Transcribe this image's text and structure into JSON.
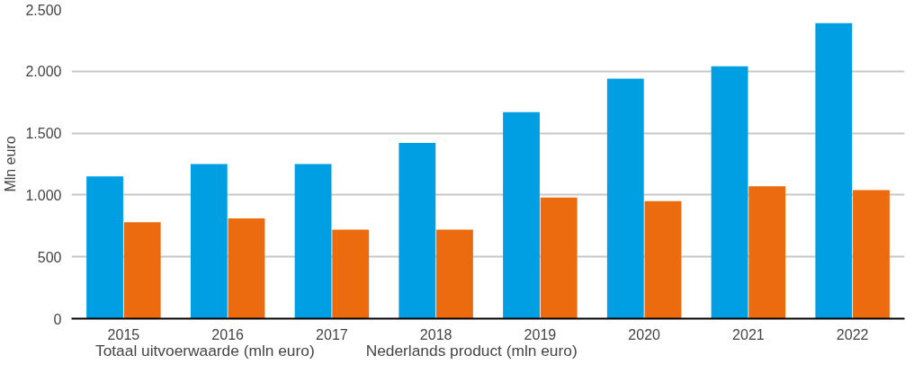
{
  "chart_data": {
    "type": "bar",
    "ylabel": "Mln euro",
    "categories": [
      "2015",
      "2016",
      "2017",
      "2018",
      "2019",
      "2020",
      "2021",
      "2022"
    ],
    "series": [
      {
        "name": "Totaal uitvoerwaarde (mln euro)",
        "color": "#009fe3",
        "values": [
          1150,
          1250,
          1250,
          1420,
          1670,
          1940,
          2040,
          2390
        ]
      },
      {
        "name": "Nederlands product (mln euro)",
        "color": "#ec6b0e",
        "values": [
          780,
          810,
          720,
          720,
          980,
          950,
          1070,
          1040
        ]
      }
    ],
    "ylim": [
      0,
      2500
    ],
    "yticks": [
      0,
      500,
      {
        "value": 1000,
        "label": "1.000"
      },
      {
        "value": 1500,
        "label": "1.500"
      },
      {
        "value": 2000,
        "label": "2.000"
      },
      {
        "value": 2500,
        "label": "2.500"
      }
    ],
    "grid": "y",
    "legend": "bottom"
  }
}
